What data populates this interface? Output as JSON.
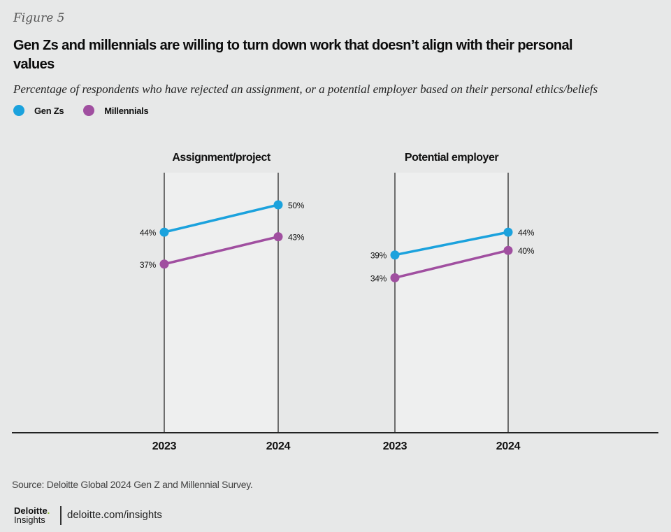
{
  "figure_label": "Figure 5",
  "title": "Gen Zs and millennials are willing to turn down work that doesn’t align with their personal values",
  "subtitle": "Percentage of respondents who have rejected an assignment, or a potential employer based on their personal ethics/beliefs",
  "legend": [
    {
      "label": "Gen Zs",
      "color": "#1ba2dd"
    },
    {
      "label": "Millennials",
      "color": "#a04fa0"
    }
  ],
  "chart_data": {
    "type": "line",
    "title": "Gen Zs and millennials are willing to turn down work that doesn’t align with their personal values",
    "ylabel": "Percentage of respondents",
    "ylim": [
      0,
      60
    ],
    "grid": false,
    "legend_position": "top-left",
    "panels": [
      {
        "title": "Assignment/project",
        "categories": [
          "2023",
          "2024"
        ],
        "series": [
          {
            "name": "Gen Zs",
            "values": [
              44,
              50
            ],
            "labels": [
              "44%",
              "50%"
            ]
          },
          {
            "name": "Millennials",
            "values": [
              37,
              43
            ],
            "labels": [
              "37%",
              "43%"
            ]
          }
        ]
      },
      {
        "title": "Potential employer",
        "categories": [
          "2023",
          "2024"
        ],
        "series": [
          {
            "name": "Gen Zs",
            "values": [
              39,
              44
            ],
            "labels": [
              "39%",
              "44%"
            ]
          },
          {
            "name": "Millennials",
            "values": [
              34,
              40
            ],
            "labels": [
              "34%",
              "40%"
            ]
          }
        ]
      }
    ]
  },
  "colors": {
    "genz": "#1ba2dd",
    "millennials": "#a04fa0",
    "panel_bg": "#eeefef",
    "background": "#e7e8e8"
  },
  "source": "Source: Deloitte Global 2024 Gen Z and Millennial Survey.",
  "footer": {
    "logo_top": "Deloitte",
    "logo_dot": ".",
    "logo_bottom": "Insights",
    "url": "deloitte.com/insights"
  }
}
